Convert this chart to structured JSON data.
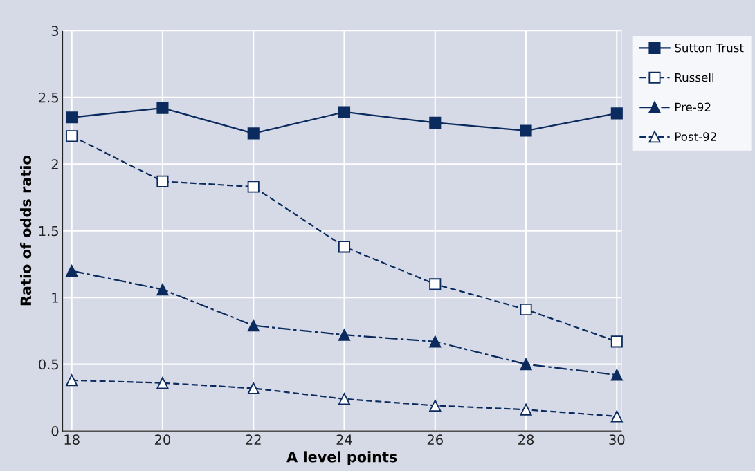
{
  "chart_data": {
    "type": "line",
    "xlabel": "A level points",
    "ylabel": "Ratio of odds ratio",
    "x": [
      18,
      20,
      22,
      24,
      26,
      28,
      30
    ],
    "xlim": [
      17.8,
      30.1
    ],
    "xticks": [
      18,
      20,
      22,
      24,
      26,
      28,
      30
    ],
    "ylim": [
      0,
      3
    ],
    "yticks": [
      0,
      0.5,
      1,
      1.5,
      2,
      2.5,
      3
    ],
    "grid": true,
    "legend": "right",
    "series": [
      {
        "name": "Sutton Trust",
        "color": "#0b2a5e",
        "marker": "square",
        "line_style": "solid",
        "values": [
          2.35,
          2.42,
          2.23,
          2.39,
          2.31,
          2.25,
          2.38
        ]
      },
      {
        "name": "Russell",
        "color": "#0b2a5e",
        "marker": "square",
        "line_style": "dashed",
        "values": [
          2.21,
          1.87,
          1.83,
          1.38,
          1.1,
          0.91,
          0.67
        ]
      },
      {
        "name": "Pre-92",
        "color": "#0b2a5e",
        "marker": "triangle",
        "line_style": "dashdot",
        "values": [
          1.2,
          1.06,
          0.79,
          0.72,
          0.67,
          0.5,
          0.42
        ]
      },
      {
        "name": "Post-92",
        "color": "#0b2a5e",
        "marker": "triangle",
        "line_style": "dashed",
        "values": [
          0.38,
          0.36,
          0.32,
          0.24,
          0.19,
          0.16,
          0.11
        ]
      }
    ]
  }
}
